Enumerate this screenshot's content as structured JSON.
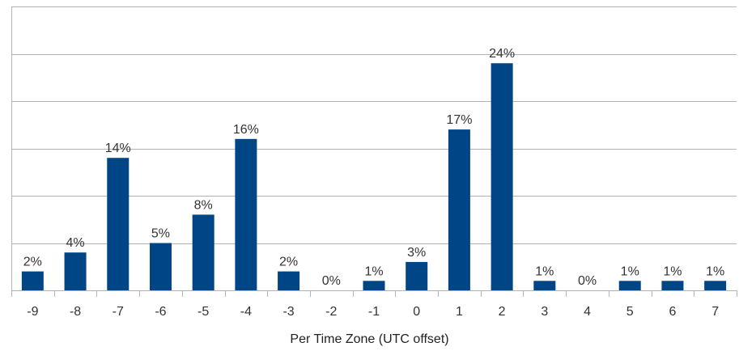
{
  "chart_data": {
    "type": "bar",
    "title": "",
    "xlabel": "Per Time Zone (UTC offset)",
    "ylabel": "",
    "categories": [
      "-9",
      "-8",
      "-7",
      "-6",
      "-5",
      "-4",
      "-3",
      "-2",
      "-1",
      "0",
      "1",
      "2",
      "3",
      "4",
      "5",
      "6",
      "7"
    ],
    "values": [
      2,
      4,
      14,
      5,
      8,
      16,
      2,
      0,
      1,
      3,
      17,
      24,
      1,
      0,
      1,
      1,
      1
    ],
    "data_labels": [
      "2%",
      "4%",
      "14%",
      "5%",
      "8%",
      "16%",
      "2%",
      "0%",
      "1%",
      "3%",
      "17%",
      "24%",
      "1%",
      "0%",
      "1%",
      "1%",
      "1%"
    ],
    "ylim": [
      0,
      30
    ],
    "grid": true,
    "legend": "none",
    "bar_color": "#004586"
  }
}
